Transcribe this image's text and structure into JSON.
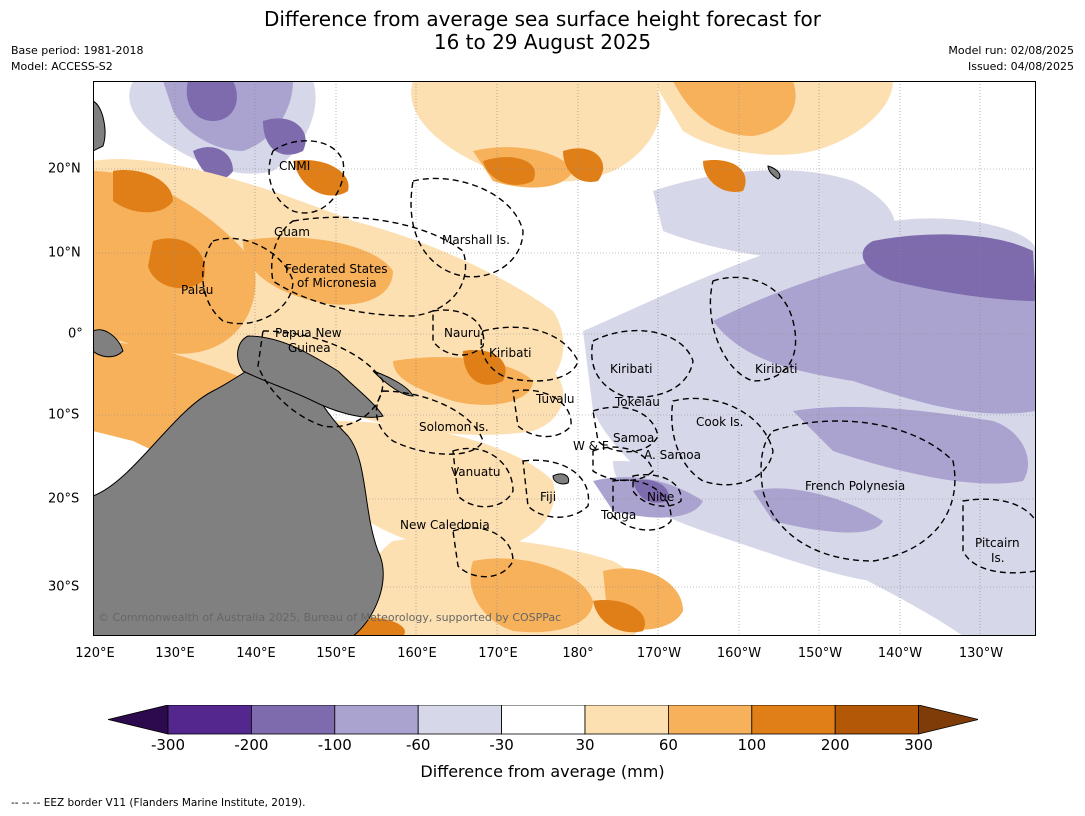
{
  "title": {
    "line1": "Difference from average sea surface height forecast for",
    "line2": "16 to 29 August 2025"
  },
  "meta_left": {
    "base_period": "Base period: 1981-2018",
    "model": "Model: ACCESS-S2"
  },
  "meta_right": {
    "model_run": "Model run: 02/08/2025",
    "issued": "Issued: 04/08/2025"
  },
  "map": {
    "lon_labels": [
      "120°E",
      "130°E",
      "140°E",
      "150°E",
      "160°E",
      "170°E",
      "180°",
      "170°W",
      "160°W",
      "150°W",
      "140°W",
      "130°W"
    ],
    "lat_labels": [
      "20°N",
      "10°N",
      "0°",
      "10°S",
      "20°S",
      "30°S"
    ],
    "regions": {
      "cnmi": "CNMI",
      "guam": "Guam",
      "marshall": "Marshall Is.",
      "fsm_1": "Federated States",
      "fsm_2": "of Micronesia",
      "palau": "Palau",
      "png_1": "Papua New",
      "png_2": "Guinea",
      "nauru": "Nauru",
      "kiribati_w": "Kiribati",
      "kiribati_c": "Kiribati",
      "kiribati_e": "Kiribati",
      "tuvalu": "Tuvalu",
      "tokelau": "Tokelau",
      "cook": "Cook Is.",
      "solomon": "Solomon Is.",
      "samoa": "Samoa",
      "wf": "W & F",
      "asamoa": "A. Samoa",
      "vanuatu": "Vanuatu",
      "fiji": "Fiji",
      "niue": "Niue",
      "tonga": "Tonga",
      "frpoly": "French Polynesia",
      "newcal": "New Caledonia",
      "pitcairn_1": "Pitcairn",
      "pitcairn_2": "Is."
    },
    "copyright": "© Commonwealth of Australia 2025, Bureau of Meteorology, supported by COSPPac"
  },
  "colorbar": {
    "ticks": [
      "-300",
      "-200",
      "-100",
      "-60",
      "-30",
      "30",
      "60",
      "100",
      "200",
      "300"
    ],
    "colors": [
      "#2d0a4e",
      "#54278f",
      "#7d6bad",
      "#aaa3cf",
      "#d7d7ea",
      "#ffffff",
      "#fde0b2",
      "#f7b15a",
      "#e07f17",
      "#b35806",
      "#7f3b08"
    ],
    "label": "Difference from average (mm)"
  },
  "footer": "--  --  -- EEZ border V11 (Flanders Marine Institute, 2019)."
}
